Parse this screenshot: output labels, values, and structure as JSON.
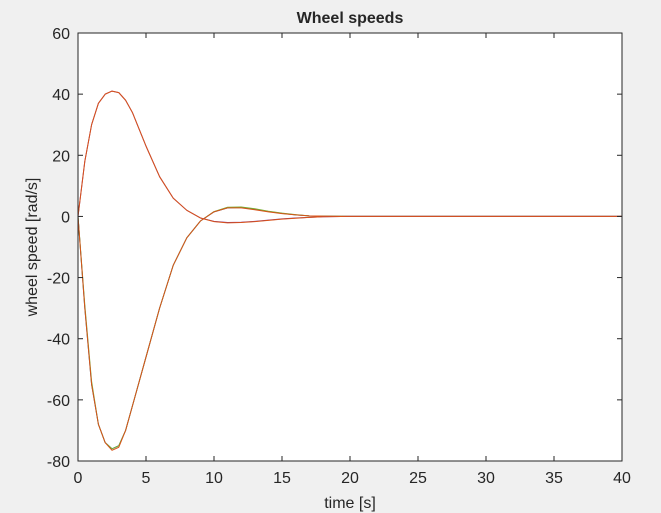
{
  "chart_data": {
    "type": "line",
    "title": "Wheel speeds",
    "xlabel": "time [s]",
    "ylabel": "wheel speed [rad/s]",
    "xlim": [
      0,
      40
    ],
    "ylim": [
      -80,
      60
    ],
    "xticks": [
      0,
      5,
      10,
      15,
      20,
      25,
      30,
      35,
      40
    ],
    "yticks": [
      -80,
      -60,
      -40,
      -20,
      0,
      20,
      40,
      60
    ],
    "grid": false,
    "legend": "none",
    "x": [
      0,
      0.5,
      1,
      1.5,
      2,
      2.5,
      3,
      3.5,
      4,
      5,
      6,
      7,
      8,
      9,
      10,
      11,
      12,
      13,
      14,
      15,
      16,
      17,
      18,
      20,
      25,
      30,
      35,
      40
    ],
    "series": [
      {
        "color": "#0072BD",
        "values": [
          0,
          -30,
          -55,
          -68,
          -74,
          -76,
          -75,
          -70,
          -62,
          -46,
          -30,
          -16,
          -7,
          -1.5,
          1.5,
          2.8,
          2.9,
          2.3,
          1.6,
          1.0,
          0.5,
          0.2,
          0.1,
          0,
          0,
          0,
          0,
          0
        ]
      },
      {
        "color": "#77AC30",
        "values": [
          0,
          -29,
          -54,
          -68,
          -74,
          -76,
          -75,
          -70,
          -62,
          -46,
          -30,
          -16,
          -7,
          -1.5,
          1.6,
          3.0,
          3.1,
          2.5,
          1.7,
          1.1,
          0.6,
          0.2,
          0.1,
          0,
          0,
          0,
          0,
          0
        ]
      },
      {
        "color": "#D95319",
        "values": [
          0,
          -30,
          -55,
          -68,
          -74,
          -76.5,
          -75.5,
          -70,
          -62,
          -46,
          -30,
          -16,
          -7,
          -1.5,
          1.5,
          2.8,
          2.8,
          2.2,
          1.5,
          0.9,
          0.5,
          0.2,
          0.1,
          0,
          0,
          0,
          0,
          0
        ]
      },
      {
        "color": "#7E2F8E",
        "values": [
          0,
          18,
          30,
          37,
          40,
          41,
          40.5,
          38,
          34,
          23,
          13,
          6,
          2,
          -0.5,
          -1.6,
          -2.0,
          -1.9,
          -1.6,
          -1.2,
          -0.8,
          -0.5,
          -0.3,
          -0.1,
          0,
          0,
          0,
          0,
          0
        ]
      },
      {
        "color": "#D95319",
        "values": [
          0,
          18,
          30,
          37,
          40,
          41,
          40.5,
          38,
          34,
          23,
          13,
          6,
          2,
          -0.5,
          -1.7,
          -2.1,
          -2.0,
          -1.7,
          -1.3,
          -0.9,
          -0.6,
          -0.3,
          -0.1,
          0,
          0,
          0,
          0,
          0
        ]
      }
    ]
  }
}
